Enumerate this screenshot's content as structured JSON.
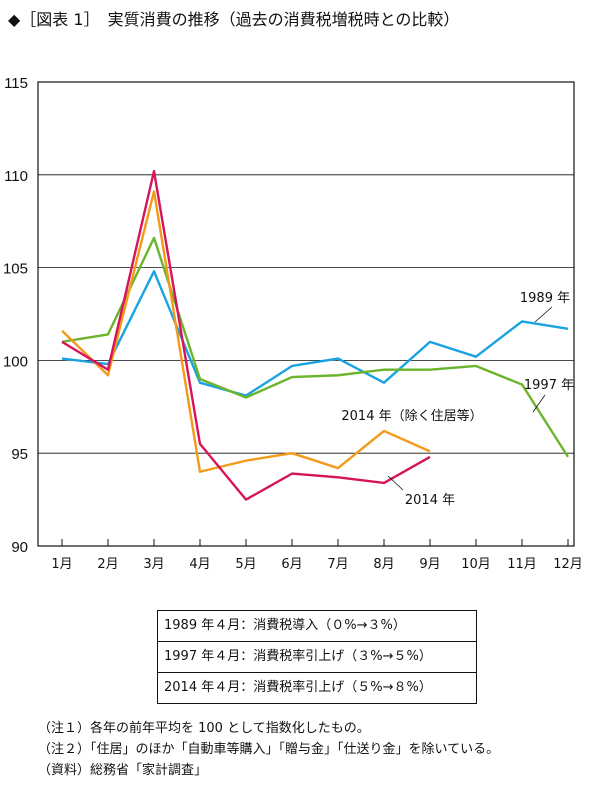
{
  "chart_data": {
    "type": "line",
    "title": "◆［図表 1］　実質消費の推移（過去の消費税増税時との比較）",
    "categories": [
      "1月",
      "2月",
      "3月",
      "4月",
      "5月",
      "6月",
      "7月",
      "8月",
      "9月",
      "10月",
      "11月",
      "12月"
    ],
    "ylim": [
      90,
      115
    ],
    "yticks": [
      "115",
      "110",
      "105",
      "100",
      "95",
      "90"
    ],
    "series": [
      {
        "name": "1989 年",
        "color": "#1aa3e0",
        "values": [
          100.1,
          99.8,
          104.8,
          98.8,
          98.1,
          99.7,
          100.1,
          98.8,
          101.0,
          100.2,
          102.1,
          101.7
        ]
      },
      {
        "name": "1997 年",
        "color": "#6bb42c",
        "values": [
          101.0,
          101.4,
          106.6,
          99.0,
          98.0,
          99.1,
          99.2,
          99.5,
          99.5,
          99.7,
          98.7,
          94.8
        ]
      },
      {
        "name": "2014 年（除く住居等）",
        "color": "#f39a1b",
        "values": [
          101.6,
          99.2,
          109.1,
          94.0,
          94.6,
          95.0,
          94.2,
          96.2,
          95.1,
          null,
          null,
          null
        ]
      },
      {
        "name": "2014 年",
        "color": "#d5145a",
        "values": [
          101.0,
          99.5,
          110.2,
          95.5,
          92.5,
          93.9,
          93.7,
          93.4,
          94.8,
          null,
          null,
          null
        ]
      }
    ]
  },
  "legend": [
    "1989 年４月：消費税導入（０%→３%）",
    "1997 年４月：消費税率引上げ（３%→５%）",
    "2014 年４月：消費税率引上げ（５%→８%）"
  ],
  "notes": [
    "（注１）各年の前年平均を 100 として指数化したもの。",
    "（注２）「住居」のほか「自動車等購入」「贈与金」「仕送り金」を除いている。",
    "（資料）総務省「家計調査」"
  ]
}
